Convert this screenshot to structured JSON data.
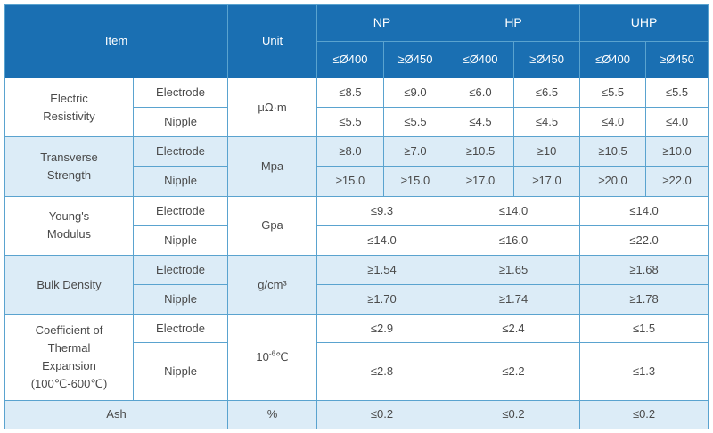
{
  "header": {
    "item": "Item",
    "unit": "Unit",
    "grades": [
      "NP",
      "HP",
      "UHP"
    ],
    "sizes": [
      "≤Ø400",
      "≥Ø450"
    ]
  },
  "rows": {
    "resistivity": {
      "label_line1": "Electric",
      "label_line2": "Resistivity",
      "unit": "μΩ·m",
      "electrode_label": "Electrode",
      "nipple_label": "Nipple",
      "electrode": [
        "≤8.5",
        "≤9.0",
        "≤6.0",
        "≤6.5",
        "≤5.5",
        "≤5.5"
      ],
      "nipple": [
        "≤5.5",
        "≤5.5",
        "≤4.5",
        "≤4.5",
        "≤4.0",
        "≤4.0"
      ]
    },
    "transverse": {
      "label_line1": "Transverse",
      "label_line2": "Strength",
      "unit": "Mpa",
      "electrode_label": "Electrode",
      "nipple_label": "Nipple",
      "electrode": [
        "≥8.0",
        "≥7.0",
        "≥10.5",
        "≥10",
        "≥10.5",
        "≥10.0"
      ],
      "nipple": [
        "≥15.0",
        "≥15.0",
        "≥17.0",
        "≥17.0",
        "≥20.0",
        "≥22.0"
      ]
    },
    "youngs": {
      "label_line1": "Young's",
      "label_line2": "Modulus",
      "unit": "Gpa",
      "electrode_label": "Electrode",
      "nipple_label": "Nipple",
      "electrode": [
        "≤9.3",
        "≤14.0",
        "≤14.0"
      ],
      "nipple": [
        "≤14.0",
        "≤16.0",
        "≤22.0"
      ]
    },
    "bulk": {
      "label": "Bulk Density",
      "unit": "g/cm³",
      "electrode_label": "Electrode",
      "nipple_label": "Nipple",
      "electrode": [
        "≥1.54",
        "≥1.65",
        "≥1.68"
      ],
      "nipple": [
        "≥1.70",
        "≥1.74",
        "≥1.78"
      ]
    },
    "thermal": {
      "label_line1": "Coefficient of",
      "label_line2": "Thermal",
      "label_line3": "Expansion",
      "label_line4": "(100℃-600℃)",
      "unit_base": "10",
      "unit_exp": "-6",
      "unit_suffix": "℃",
      "electrode_label": "Electrode",
      "nipple_label": "Nipple",
      "electrode": [
        "≤2.9",
        "≤2.4",
        "≤1.5"
      ],
      "nipple": [
        "≤2.8",
        "≤2.2",
        "≤1.3"
      ]
    },
    "ash": {
      "label": "Ash",
      "unit": "%",
      "values": [
        "≤0.2",
        "≤0.2",
        "≤0.2"
      ]
    }
  }
}
